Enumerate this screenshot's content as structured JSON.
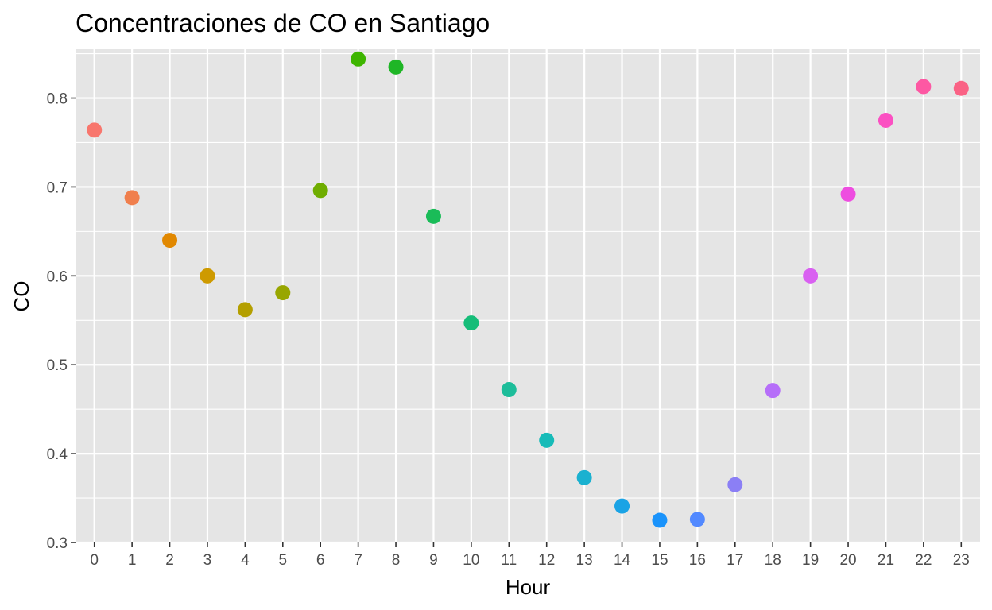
{
  "chart_data": {
    "type": "scatter",
    "title": "Concentraciones de CO en Santiago",
    "xlabel": "Hour",
    "ylabel": "CO",
    "x": [
      0,
      1,
      2,
      3,
      4,
      5,
      6,
      7,
      8,
      9,
      10,
      11,
      12,
      13,
      14,
      15,
      16,
      17,
      18,
      19,
      20,
      21,
      22,
      23
    ],
    "y": [
      0.764,
      0.688,
      0.64,
      0.6,
      0.562,
      0.581,
      0.696,
      0.844,
      0.835,
      0.667,
      0.547,
      0.472,
      0.415,
      0.373,
      0.341,
      0.325,
      0.326,
      0.365,
      0.471,
      0.6,
      0.692,
      0.775,
      0.813,
      0.811
    ],
    "x_ticks": [
      "0",
      "1",
      "2",
      "3",
      "4",
      "5",
      "6",
      "7",
      "8",
      "9",
      "10",
      "11",
      "12",
      "13",
      "14",
      "15",
      "16",
      "17",
      "18",
      "19",
      "20",
      "21",
      "22",
      "23"
    ],
    "y_ticks": [
      0.3,
      0.4,
      0.5,
      0.6,
      0.7,
      0.8
    ],
    "y_tick_labels": [
      "0.3",
      "0.4",
      "0.5",
      "0.6",
      "0.7",
      "0.8"
    ],
    "xlim": [
      -0.5,
      23.5
    ],
    "ylim": [
      0.3,
      0.855
    ],
    "grid": true,
    "legend": "none",
    "panel_background": "#e5e5e5",
    "point_colors": [
      "#F8766D",
      "#F07F4D",
      "#E18800",
      "#CE9A00",
      "#B49F00",
      "#98A600",
      "#6FAD00",
      "#3EB500",
      "#1FB626",
      "#1ABC58",
      "#16BD79",
      "#1DBD9A",
      "#17BBB8",
      "#1AB1D0",
      "#1AA3E5",
      "#1A93FB",
      "#5289FF",
      "#8B7FF5",
      "#B66EF9",
      "#D960F1",
      "#EE4DE0",
      "#FB50C2",
      "#FD58A3",
      "#FA6285"
    ]
  }
}
